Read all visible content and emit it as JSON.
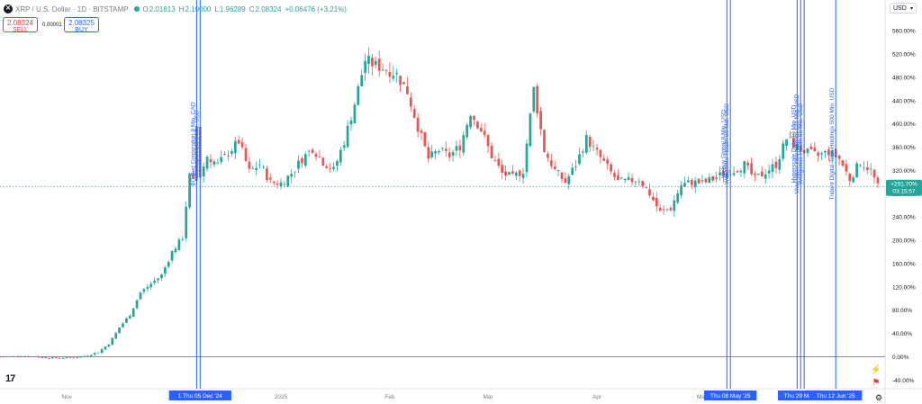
{
  "header": {
    "symbol_title": "XRP / U.S. Dollar · 1D · BITSTAMP",
    "symbol_icon": "xrp-logo-icon",
    "open_label": "O",
    "open": "2.01813",
    "high_label": "H",
    "high": "2.10000",
    "low_label": "L",
    "low": "1.96289",
    "close_label": "C",
    "close": "2.08324",
    "change": "+0.06476 (+3.21%)"
  },
  "trading": {
    "sell_price": "2.08324",
    "sell_label": "SELL",
    "spread": "0.00001",
    "buy_price": "2.08325",
    "buy_label": "BUY"
  },
  "currency_selector": "USD",
  "colors": {
    "up": "#26a69a",
    "down": "#ef5350",
    "accent": "#2962ff"
  },
  "chart_data": {
    "type": "candlestick",
    "yaxis_unit": "percent",
    "y_ticks": [
      "560.00%",
      "520.00%",
      "480.00%",
      "440.00%",
      "400.00%",
      "360.00%",
      "320.00%",
      "280.00%",
      "240.00%",
      "200.00%",
      "160.00%",
      "120.00%",
      "80.00%",
      "40.00%",
      "0.00%",
      "-40.00%"
    ],
    "y_tick_values": [
      560,
      520,
      480,
      440,
      400,
      360,
      320,
      280,
      240,
      200,
      160,
      120,
      80,
      40,
      0,
      -40
    ],
    "x_ticks": [
      "Nov",
      "2025",
      "Feb",
      "Mar",
      "Apr",
      "May"
    ],
    "x_tick_days": [
      0,
      61,
      92,
      120,
      151,
      181
    ],
    "x_range_days": [
      -19,
      231
    ],
    "ylim": [
      -55,
      585
    ],
    "current_value_label": "+291.70%",
    "countdown_label": "03:15:57",
    "current_value": 291.7,
    "grid": false,
    "baseline_value": 0,
    "anchors": [
      [
        -19,
        0
      ],
      [
        -12,
        1
      ],
      [
        -5,
        -2
      ],
      [
        0,
        -2
      ],
      [
        3,
        -1
      ],
      [
        6,
        2
      ],
      [
        9,
        8
      ],
      [
        12,
        22
      ],
      [
        15,
        50
      ],
      [
        18,
        72
      ],
      [
        21,
        110
      ],
      [
        24,
        125
      ],
      [
        27,
        140
      ],
      [
        30,
        180
      ],
      [
        33,
        205
      ],
      [
        34,
        260
      ],
      [
        35,
        310
      ],
      [
        36,
        300
      ],
      [
        37,
        395
      ],
      [
        38,
        310
      ],
      [
        40,
        345
      ],
      [
        43,
        330
      ],
      [
        46,
        350
      ],
      [
        49,
        370
      ],
      [
        52,
        318
      ],
      [
        55,
        330
      ],
      [
        58,
        300
      ],
      [
        61,
        298
      ],
      [
        64,
        315
      ],
      [
        67,
        340
      ],
      [
        70,
        358
      ],
      [
        73,
        335
      ],
      [
        76,
        320
      ],
      [
        79,
        370
      ],
      [
        82,
        435
      ],
      [
        85,
        510
      ],
      [
        88,
        500
      ],
      [
        91,
        495
      ],
      [
        94,
        485
      ],
      [
        97,
        455
      ],
      [
        100,
        395
      ],
      [
        103,
        340
      ],
      [
        106,
        355
      ],
      [
        109,
        345
      ],
      [
        112,
        362
      ],
      [
        115,
        420
      ],
      [
        118,
        390
      ],
      [
        121,
        345
      ],
      [
        124,
        315
      ],
      [
        127,
        308
      ],
      [
        130,
        320
      ],
      [
        133,
        460
      ],
      [
        136,
        355
      ],
      [
        139,
        320
      ],
      [
        142,
        300
      ],
      [
        145,
        330
      ],
      [
        148,
        375
      ],
      [
        151,
        350
      ],
      [
        154,
        325
      ],
      [
        157,
        300
      ],
      [
        160,
        302
      ],
      [
        163,
        305
      ],
      [
        166,
        280
      ],
      [
        169,
        248
      ],
      [
        172,
        255
      ],
      [
        175,
        295
      ],
      [
        178,
        300
      ],
      [
        181,
        298
      ],
      [
        184,
        305
      ],
      [
        187,
        315
      ],
      [
        190,
        320
      ],
      [
        193,
        330
      ],
      [
        196,
        305
      ],
      [
        199,
        318
      ],
      [
        202,
        330
      ],
      [
        205,
        375
      ],
      [
        208,
        360
      ],
      [
        211,
        350
      ],
      [
        214,
        345
      ],
      [
        217,
        352
      ],
      [
        220,
        340
      ],
      [
        223,
        305
      ],
      [
        226,
        335
      ],
      [
        229,
        320
      ],
      [
        231,
        291.7
      ]
    ],
    "events": [
      {
        "day": 37,
        "label": "BC Bud Corporation 8 Mio. CAD"
      },
      {
        "day": 38,
        "label": "Worksport Ltd 5 Mio. USD"
      },
      {
        "day": 188,
        "label": "Webuy Global 8 Mio. USD"
      },
      {
        "day": 189,
        "label": "Wellgistics Health 50 Mio. USD"
      },
      {
        "day": 208,
        "label": "Hyperscale Data 10 Mio. USD"
      },
      {
        "day": 209,
        "label": "VivoPower International 121 Mio. USD"
      },
      {
        "day": 210,
        "label": "Wellgistics Health 50 Mio. USD"
      },
      {
        "day": 219,
        "label": "Trident Digital Tech Holdings 500 Mio. USD"
      }
    ],
    "date_badges": [
      {
        "day": 38,
        "label": "1  Thu 05 Dec '24"
      },
      {
        "day": 189,
        "label": "Thu 08 May '25"
      },
      {
        "day": 210,
        "label": "Thu 29 May '25"
      },
      {
        "day": 219,
        "label": "Thu 12 Jun '25"
      }
    ]
  },
  "icons": {
    "logo": "tradingview-logo-icon",
    "settings": "gear-icon",
    "events": [
      "lightning-event-icon",
      "flag-event-icon"
    ]
  }
}
